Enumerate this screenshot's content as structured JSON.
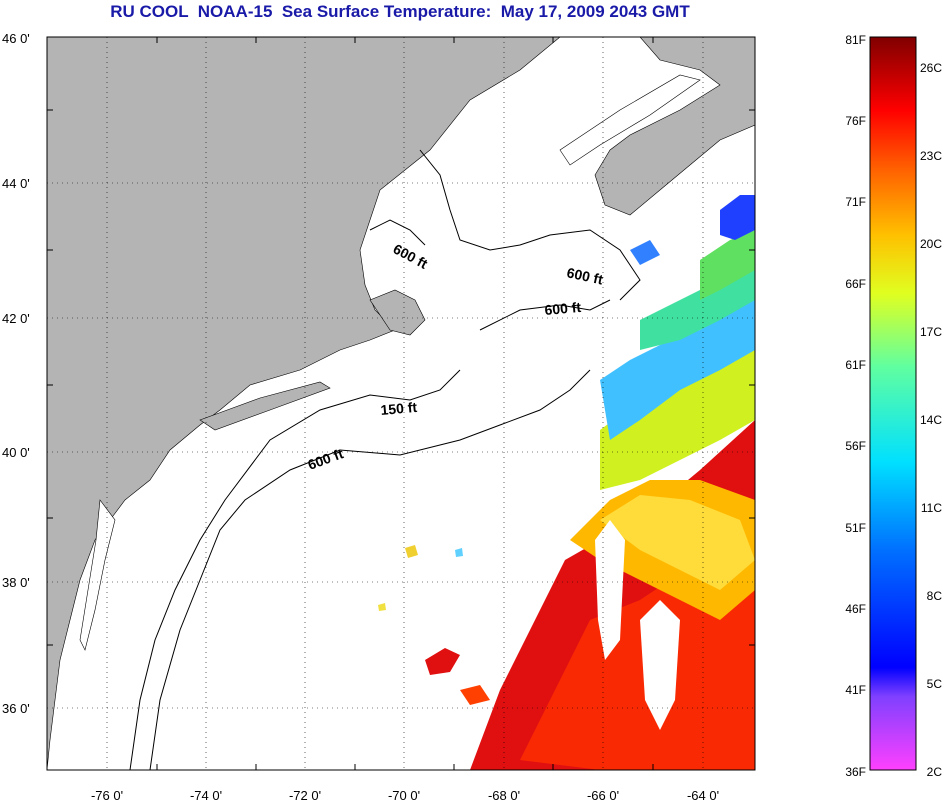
{
  "title": "RU COOL  NOAA-15  Sea Surface Temperature:  May 17, 2009 2043 GMT",
  "map": {
    "lat_labels": [
      "46 0'",
      "44 0'",
      "42 0'",
      "40 0'",
      "38 0'",
      "36 0'"
    ],
    "lon_labels": [
      "-76 0'",
      "-74 0'",
      "-72 0'",
      "-70 0'",
      "-68 0'",
      "-66 0'",
      "-64 0'"
    ],
    "contour_labels": [
      "600 ft",
      "600 ft",
      "600 ft",
      "150 ft",
      "600 ft"
    ],
    "colors": {
      "land": "#b4b4b4",
      "ocean": "#ffffff",
      "grid": "#000000"
    }
  },
  "colorbar": {
    "fahrenheit": [
      "81F",
      "76F",
      "71F",
      "66F",
      "61F",
      "56F",
      "51F",
      "46F",
      "41F",
      "36F"
    ],
    "celsius": [
      "26C",
      "23C",
      "20C",
      "17C",
      "14C",
      "11C",
      "8C",
      "5C",
      "2C"
    ]
  }
}
